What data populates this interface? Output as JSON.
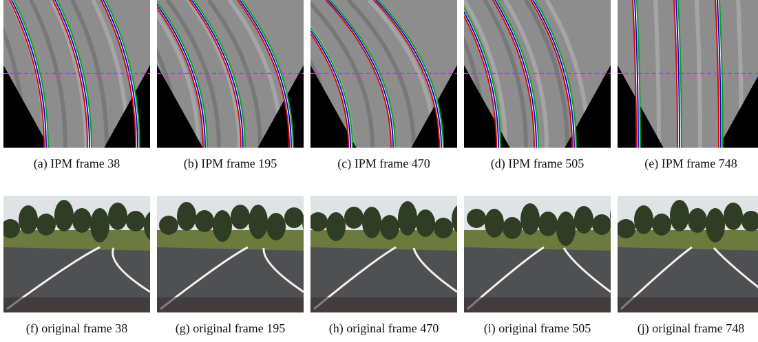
{
  "ipm_captions": [
    "(a) IPM frame 38",
    "(b) IPM frame 195",
    "(c) IPM frame 470",
    "(d) IPM frame 505",
    "(e) IPM frame 748"
  ],
  "original_captions": [
    "(f) original frame 38",
    "(g) original frame 195",
    "(h) original frame 470",
    "(i) original frame 505",
    "(j) original frame 748"
  ]
}
